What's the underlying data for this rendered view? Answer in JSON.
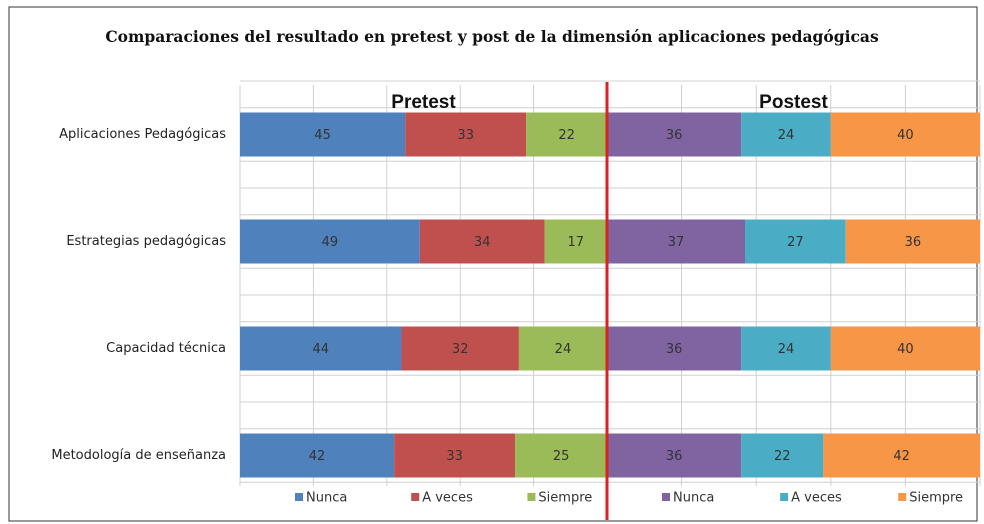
{
  "title": "Comparaciones  del resultado en pretest y post de la dimensión aplicaciones pedagógicas",
  "chart_data": [
    {
      "type": "bar",
      "stacked": true,
      "orientation": "horizontal",
      "title": "Pretest",
      "categories": [
        "Aplicaciones Pedagógicas",
        "Estrategias pedagógicas",
        "Capacidad técnica",
        "Metodología de enseñanza"
      ],
      "xlim": [
        0,
        100
      ],
      "xticks": [
        0,
        20,
        40,
        60,
        80,
        100
      ],
      "grid": true,
      "series": [
        {
          "name": "Nunca",
          "color": "#4f81bd",
          "values": [
            45,
            49,
            44,
            42
          ]
        },
        {
          "name": "A veces",
          "color": "#c0504d",
          "values": [
            33,
            34,
            32,
            33
          ]
        },
        {
          "name": "Siempre",
          "color": "#9bbb59",
          "values": [
            22,
            17,
            24,
            25
          ]
        }
      ]
    },
    {
      "type": "bar",
      "stacked": true,
      "orientation": "horizontal",
      "title": "Postest",
      "xlim": [
        0,
        100
      ],
      "xticks": [
        0,
        20,
        40,
        60,
        80,
        100
      ],
      "grid": true,
      "series": [
        {
          "name": "Nunca",
          "color": "#8064a2",
          "values": [
            36,
            37,
            36,
            36
          ]
        },
        {
          "name": "A veces",
          "color": "#4bacc6",
          "values": [
            24,
            27,
            24,
            22
          ]
        },
        {
          "name": "Siempre",
          "color": "#f79646",
          "values": [
            40,
            36,
            40,
            42
          ]
        }
      ]
    }
  ]
}
